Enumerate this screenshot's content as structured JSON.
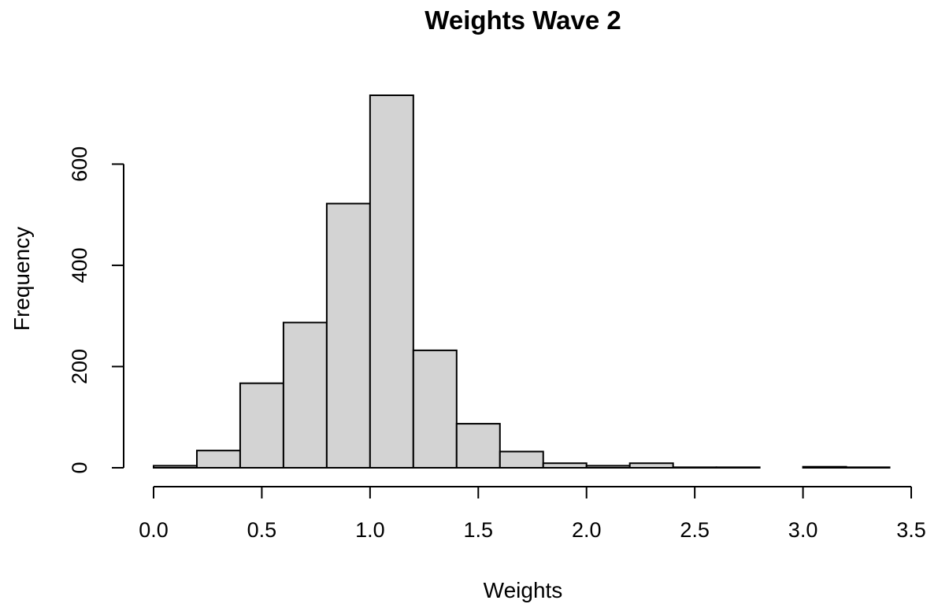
{
  "chart_data": {
    "type": "bar",
    "title": "Weights Wave 2",
    "xlabel": "Weights",
    "ylabel": "Frequency",
    "bin_width": 0.2,
    "bins": [
      {
        "start": 0.0,
        "end": 0.2,
        "count": 4
      },
      {
        "start": 0.2,
        "end": 0.4,
        "count": 34
      },
      {
        "start": 0.4,
        "end": 0.6,
        "count": 167
      },
      {
        "start": 0.6,
        "end": 0.8,
        "count": 287
      },
      {
        "start": 0.8,
        "end": 1.0,
        "count": 522
      },
      {
        "start": 1.0,
        "end": 1.2,
        "count": 736
      },
      {
        "start": 1.2,
        "end": 1.4,
        "count": 232
      },
      {
        "start": 1.4,
        "end": 1.6,
        "count": 87
      },
      {
        "start": 1.6,
        "end": 1.8,
        "count": 32
      },
      {
        "start": 1.8,
        "end": 2.0,
        "count": 9
      },
      {
        "start": 2.0,
        "end": 2.2,
        "count": 4
      },
      {
        "start": 2.2,
        "end": 2.4,
        "count": 9
      },
      {
        "start": 2.4,
        "end": 2.6,
        "count": 1
      },
      {
        "start": 2.6,
        "end": 2.8,
        "count": 1
      },
      {
        "start": 2.8,
        "end": 3.0,
        "count": 0
      },
      {
        "start": 3.0,
        "end": 3.2,
        "count": 2
      },
      {
        "start": 3.2,
        "end": 3.4,
        "count": 1
      }
    ],
    "xlim": [
      0,
      3.5
    ],
    "ylim": [
      0,
      736
    ],
    "xticks": [
      {
        "value": 0.0,
        "label": "0.0"
      },
      {
        "value": 0.5,
        "label": "0.5"
      },
      {
        "value": 1.0,
        "label": "1.0"
      },
      {
        "value": 1.5,
        "label": "1.5"
      },
      {
        "value": 2.0,
        "label": "2.0"
      },
      {
        "value": 2.5,
        "label": "2.5"
      },
      {
        "value": 3.0,
        "label": "3.0"
      },
      {
        "value": 3.5,
        "label": "3.5"
      }
    ],
    "yticks": [
      {
        "value": 0,
        "label": "0"
      },
      {
        "value": 200,
        "label": "200"
      },
      {
        "value": 400,
        "label": "400"
      },
      {
        "value": 600,
        "label": "600"
      }
    ],
    "bar_fill": "#d3d3d3",
    "bar_stroke": "#000000",
    "grid": false
  }
}
